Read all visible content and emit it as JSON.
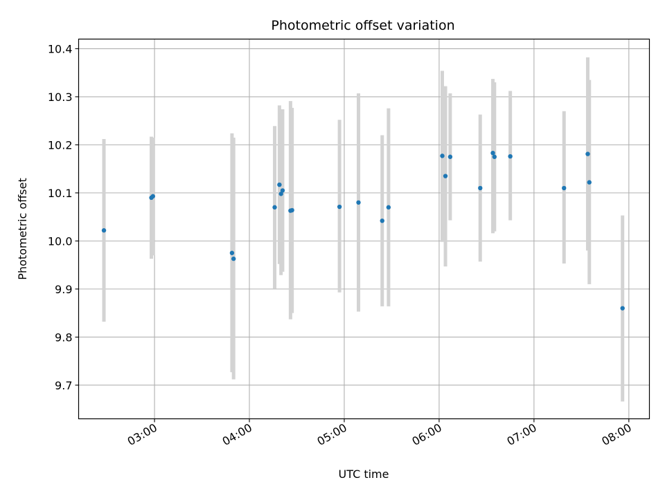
{
  "chart_data": {
    "type": "scatter",
    "title": "Photometric offset variation",
    "xlabel": "UTC time",
    "ylabel": "Photometric offset",
    "x_tick_labels": [
      "03:00",
      "04:00",
      "05:00",
      "06:00",
      "07:00",
      "08:00"
    ],
    "y_tick_labels": [
      "9.7",
      "9.8",
      "9.9",
      "10.0",
      "10.1",
      "10.2",
      "10.3",
      "10.4"
    ],
    "grid": true,
    "xlim": [
      "02:12",
      "08:13"
    ],
    "ylim": [
      9.63,
      10.42
    ],
    "colors": {
      "point": "#1f77b4",
      "errorbar": "#d3d3d3",
      "grid": "#b0b0b0"
    },
    "series": [
      {
        "error_bars": true,
        "points": [
          {
            "x": "02:28",
            "y": 10.022,
            "ylow": 9.832,
            "yhigh": 10.212
          },
          {
            "x": "02:58",
            "y": 10.09,
            "ylow": 9.963,
            "yhigh": 10.217
          },
          {
            "x": "02:59",
            "y": 10.093,
            "ylow": 9.97,
            "yhigh": 10.215
          },
          {
            "x": "03:49",
            "y": 9.975,
            "ylow": 9.727,
            "yhigh": 10.224
          },
          {
            "x": "03:50",
            "y": 9.963,
            "ylow": 9.712,
            "yhigh": 10.215
          },
          {
            "x": "04:16",
            "y": 10.07,
            "ylow": 9.901,
            "yhigh": 10.239
          },
          {
            "x": "04:19",
            "y": 10.117,
            "ylow": 9.952,
            "yhigh": 10.282
          },
          {
            "x": "04:20",
            "y": 10.098,
            "ylow": 9.929,
            "yhigh": 10.268
          },
          {
            "x": "04:21",
            "y": 10.105,
            "ylow": 9.936,
            "yhigh": 10.274
          },
          {
            "x": "04:26",
            "y": 10.063,
            "ylow": 9.837,
            "yhigh": 10.291
          },
          {
            "x": "04:27",
            "y": 10.064,
            "ylow": 9.85,
            "yhigh": 10.277
          },
          {
            "x": "04:57",
            "y": 10.071,
            "ylow": 9.893,
            "yhigh": 10.252
          },
          {
            "x": "05:09",
            "y": 10.08,
            "ylow": 9.853,
            "yhigh": 10.307
          },
          {
            "x": "05:24",
            "y": 10.042,
            "ylow": 9.864,
            "yhigh": 10.22
          },
          {
            "x": "05:28",
            "y": 10.07,
            "ylow": 9.864,
            "yhigh": 10.276
          },
          {
            "x": "06:02",
            "y": 10.177,
            "ylow": 9.998,
            "yhigh": 10.354
          },
          {
            "x": "06:04",
            "y": 10.135,
            "ylow": 9.947,
            "yhigh": 10.322
          },
          {
            "x": "06:07",
            "y": 10.175,
            "ylow": 10.043,
            "yhigh": 10.307
          },
          {
            "x": "06:26",
            "y": 10.11,
            "ylow": 9.957,
            "yhigh": 10.263
          },
          {
            "x": "06:34",
            "y": 10.183,
            "ylow": 10.016,
            "yhigh": 10.337
          },
          {
            "x": "06:35",
            "y": 10.175,
            "ylow": 10.02,
            "yhigh": 10.33
          },
          {
            "x": "06:45",
            "y": 10.176,
            "ylow": 10.043,
            "yhigh": 10.312
          },
          {
            "x": "07:19",
            "y": 10.11,
            "ylow": 9.953,
            "yhigh": 10.27
          },
          {
            "x": "07:34",
            "y": 10.181,
            "ylow": 9.98,
            "yhigh": 10.382
          },
          {
            "x": "07:35",
            "y": 10.122,
            "ylow": 9.91,
            "yhigh": 10.335
          },
          {
            "x": "07:56",
            "y": 9.86,
            "ylow": 9.666,
            "yhigh": 10.053
          }
        ]
      }
    ]
  }
}
